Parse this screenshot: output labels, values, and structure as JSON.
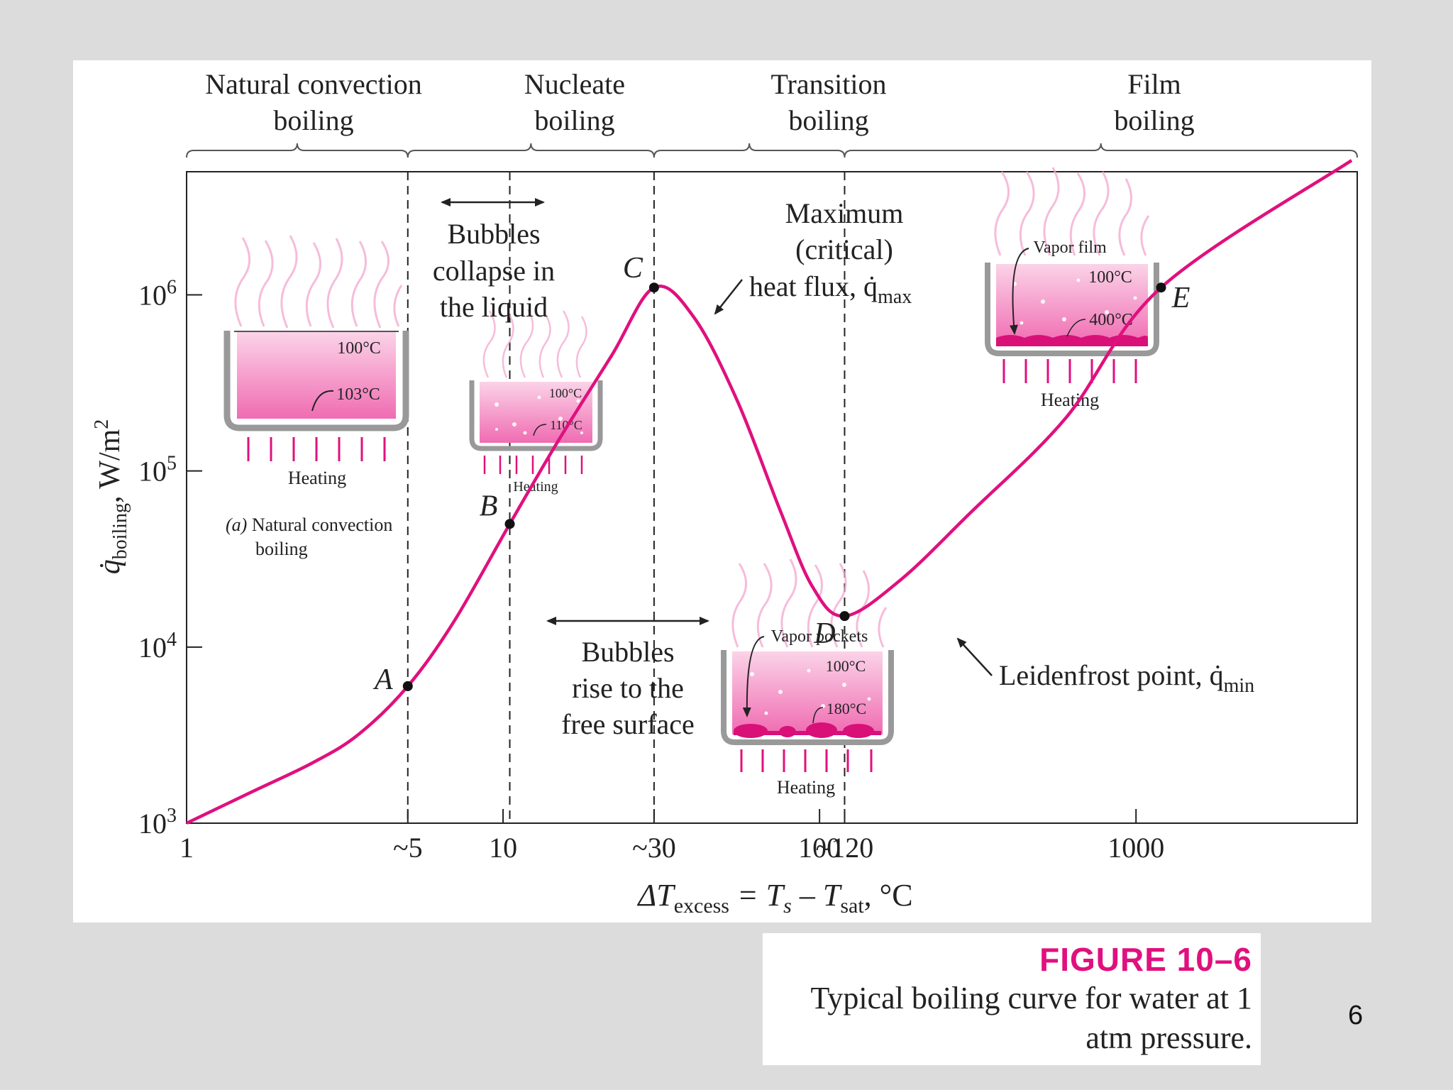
{
  "colors": {
    "background": "#dcdcdc",
    "curve": "#e0107e",
    "accent": "#e0107e",
    "pan_fill": "#f7b3d6",
    "text": "#222222"
  },
  "chart_data": {
    "type": "line",
    "xscale": "log",
    "yscale": "log",
    "xlim": [
      1,
      5000
    ],
    "ylim": [
      1000,
      5000000
    ],
    "xlabel": {
      "delta": "ΔT",
      "excess": "excess",
      "mid": " = T",
      "s": "s",
      "dash": " – T",
      "sat": "sat",
      "unit": ", °C"
    },
    "ylabel": {
      "q": "q̇",
      "sub": "boiling",
      "unit": ",  W/m",
      "exp": "2"
    },
    "x_ticks": [
      {
        "label": "1",
        "value": 1
      },
      {
        "label": "~5",
        "value": 5
      },
      {
        "label": "10",
        "value": 10
      },
      {
        "label": "~30",
        "value": 30
      },
      {
        "label": "100",
        "value": 100
      },
      {
        "label": "~120",
        "value": 120
      },
      {
        "label": "1000",
        "value": 1000
      }
    ],
    "y_ticks": [
      {
        "base": "10",
        "exp": "3",
        "value": 1000
      },
      {
        "base": "10",
        "exp": "4",
        "value": 10000
      },
      {
        "base": "10",
        "exp": "5",
        "value": 100000
      },
      {
        "base": "10",
        "exp": "6",
        "value": 1000000
      }
    ],
    "regions": [
      {
        "line1": "Natural convection",
        "line2": "boiling",
        "x_from": 1,
        "x_to": 5
      },
      {
        "line1": "Nucleate",
        "line2": "boiling",
        "x_from": 5,
        "x_to": 30
      },
      {
        "line1": "Transition",
        "line2": "boiling",
        "x_from": 30,
        "x_to": 120
      },
      {
        "line1": "Film",
        "line2": "boiling",
        "x_from": 120,
        "x_to": 5000
      }
    ],
    "boundaries": [
      5,
      10.5,
      30,
      120
    ],
    "series": [
      {
        "name": "Boiling curve",
        "points": [
          [
            1,
            1000
          ],
          [
            1.6,
            1500
          ],
          [
            2.5,
            2200
          ],
          [
            3.5,
            3200
          ],
          [
            5,
            6000
          ],
          [
            7,
            14000
          ],
          [
            10.5,
            50000
          ],
          [
            15,
            150000
          ],
          [
            22,
            450000
          ],
          [
            30,
            1100000
          ],
          [
            40,
            750000
          ],
          [
            55,
            250000
          ],
          [
            75,
            60000
          ],
          [
            95,
            22000
          ],
          [
            120,
            15000
          ],
          [
            180,
            24000
          ],
          [
            300,
            58000
          ],
          [
            600,
            200000
          ],
          [
            1200,
            1100000
          ],
          [
            4800,
            5800000
          ]
        ]
      }
    ],
    "points": [
      {
        "label": "A",
        "x": 5,
        "y": 6000
      },
      {
        "label": "B",
        "x": 10.5,
        "y": 50000
      },
      {
        "label": "C",
        "x": 30,
        "y": 1100000
      },
      {
        "label": "D",
        "x": 120,
        "y": 15000
      },
      {
        "label": "E",
        "x": 1200,
        "y": 1100000
      }
    ],
    "annotations": {
      "bubbles_collapse": [
        "Bubbles",
        "collapse in",
        "the liquid"
      ],
      "bubbles_rise": [
        "Bubbles",
        "rise to the",
        "free surface"
      ],
      "critical": {
        "line1": "Maximum",
        "line2": "(critical)",
        "line3": "heat flux, q̇",
        "sub": "max"
      },
      "leidenfrost": {
        "text": "Leidenfrost point, q̇",
        "sub": "min"
      }
    },
    "insets": {
      "natural": {
        "top_temp": "100°C",
        "bottom_temp": "103°C",
        "heating": "Heating",
        "caption_tag": "(a)",
        "caption_line1": " Natural convection",
        "caption_line2": "boiling"
      },
      "nucleate": {
        "top_temp": "100°C",
        "bottom_temp": "110°C",
        "heating": "Heating"
      },
      "transition": {
        "label": "Vapor pockets",
        "top_temp": "100°C",
        "bottom_temp": "180°C",
        "heating": "Heating"
      },
      "film": {
        "label": "Vapor film",
        "top_temp": "100°C",
        "bottom_temp": "400°C",
        "heating": "Heating"
      }
    }
  },
  "caption": {
    "figure_number": "FIGURE 10–6",
    "text": "Typical boiling curve for water at 1 atm pressure."
  },
  "page_number": "6"
}
